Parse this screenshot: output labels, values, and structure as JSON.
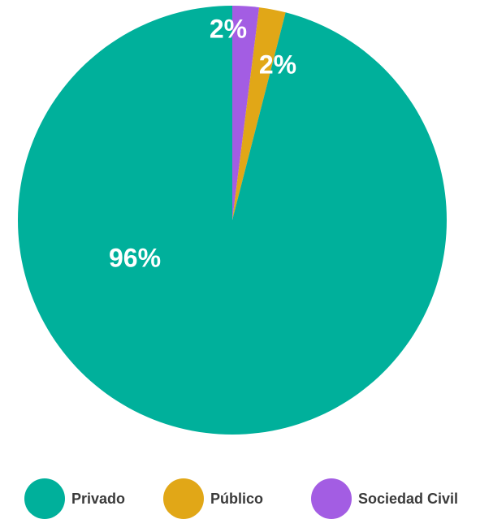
{
  "chart_data": {
    "type": "pie",
    "title": "",
    "slices": [
      {
        "label": "Privado",
        "value": 96,
        "display": "96%",
        "color": "#00B09B"
      },
      {
        "label": "Público",
        "value": 2,
        "display": "2%",
        "color": "#E1A717"
      },
      {
        "label": "Sociedad Civil",
        "value": 2,
        "display": "2%",
        "color": "#A35DE3"
      }
    ],
    "legend_position": "bottom"
  },
  "legend": {
    "items": [
      {
        "label": "Privado",
        "color": "#00B09B"
      },
      {
        "label": "Público",
        "color": "#E1A717"
      },
      {
        "label": "Sociedad Civil",
        "color": "#A35DE3"
      }
    ]
  }
}
